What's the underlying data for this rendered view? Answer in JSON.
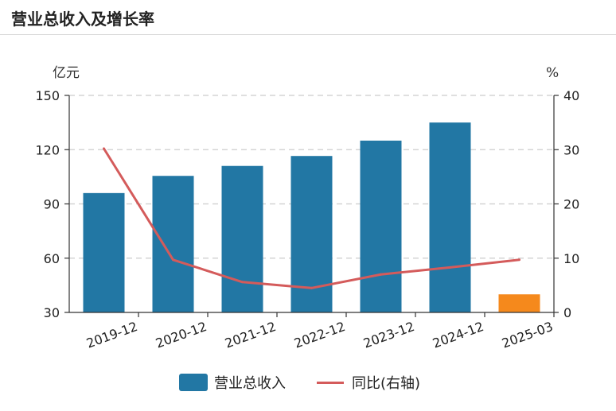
{
  "header": {
    "title": "营业总收入及增长率"
  },
  "chart_data": {
    "type": "bar",
    "categories": [
      "2019-12",
      "2020-12",
      "2021-12",
      "2022-12",
      "2023-12",
      "2024-12",
      "2025-03"
    ],
    "series": [
      {
        "name": "营业总收入",
        "type": "bar",
        "axis": "left",
        "values": [
          96,
          105.5,
          111,
          116.5,
          125,
          135,
          40
        ]
      },
      {
        "name": "同比(右轴)",
        "type": "line",
        "axis": "right",
        "values": [
          30.2,
          9.7,
          5.6,
          4.5,
          7.0,
          8.3,
          9.7
        ]
      }
    ],
    "ylabel_left": "亿元",
    "ylabel_right": "%",
    "ylim_left": [
      30,
      150
    ],
    "ylim_right": [
      0,
      40
    ],
    "yticks_left": [
      "30",
      "60",
      "90",
      "120",
      "150"
    ],
    "yticks_right": [
      "0",
      "10",
      "20",
      "30",
      "40"
    ],
    "grid": true,
    "legend": "bottom-center",
    "colors": {
      "bar": "#2277a4",
      "bar_highlight": "#f5891c",
      "line": "#d45b5b",
      "grid": "#cccccc"
    }
  }
}
